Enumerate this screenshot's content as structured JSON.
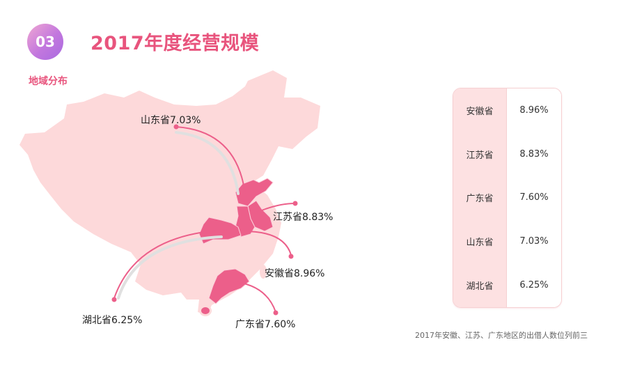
{
  "badge": {
    "number": "03"
  },
  "header": {
    "title": "2017年度经营规模",
    "subtitle": "地域分布"
  },
  "colors": {
    "accent": "#e8547d",
    "map_fill": "#fdd9da",
    "highlight": "#ec5f8a",
    "table_bg": "#fde1e2"
  },
  "map": {
    "labels": {
      "shandong": "山东省7.03%",
      "jiangsu": "江苏省8.83%",
      "anhui": "安徽省8.96%",
      "hubei": "湖北省6.25%",
      "guangdong": "广东省7.60%"
    }
  },
  "table": {
    "rows": [
      {
        "province": "安徽省",
        "value": "8.96%"
      },
      {
        "province": "江苏省",
        "value": "8.83%"
      },
      {
        "province": "广东省",
        "value": "7.60%"
      },
      {
        "province": "山东省",
        "value": "7.03%"
      },
      {
        "province": "湖北省",
        "value": "6.25%"
      }
    ]
  },
  "footnote": "2017年安徽、江苏、广东地区的出借人数位列前三"
}
